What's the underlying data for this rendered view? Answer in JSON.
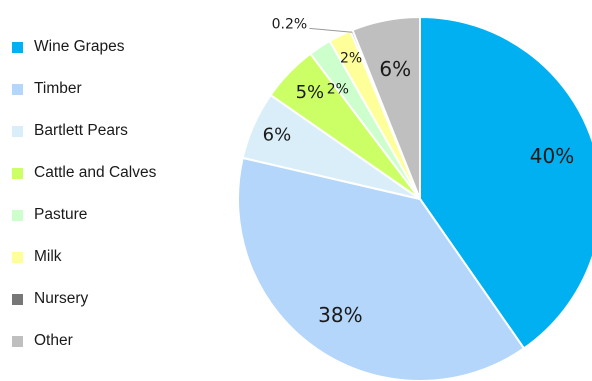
{
  "chart_data": {
    "type": "pie",
    "title": "",
    "legend_position": "left",
    "categories": [
      "Wine Grapes",
      "Timber",
      "Bartlett Pears",
      "Cattle and Calves",
      "Pasture",
      "Milk",
      "Nursery",
      "Other"
    ],
    "values": [
      40,
      38,
      6,
      5,
      2,
      2,
      0.2,
      6
    ],
    "data_labels": [
      "40%",
      "38%",
      "6%",
      "5%",
      "2%",
      "2%",
      "0.2%",
      "6%"
    ],
    "colors": [
      "#00b0f0",
      "#b4d6fa",
      "#daeefa",
      "#ccff66",
      "#ccffcc",
      "#ffff99",
      "#777777",
      "#bfbfbf"
    ],
    "start_angle_deg": 0,
    "direction": "clockwise"
  }
}
